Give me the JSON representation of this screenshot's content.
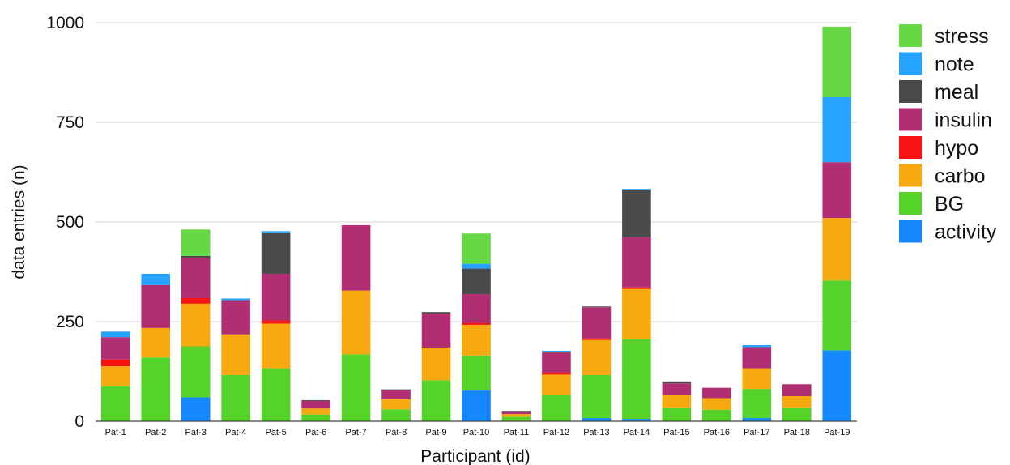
{
  "chart_data": {
    "type": "bar",
    "stacked": true,
    "title": "",
    "xlabel": "Participant (id)",
    "ylabel": "data entries (n)",
    "ylim": [
      0,
      1000
    ],
    "yticks": [
      0,
      250,
      500,
      750,
      1000
    ],
    "grid": true,
    "legend_position": "right",
    "categories": [
      "Pat-1",
      "Pat-2",
      "Pat-3",
      "Pat-4",
      "Pat-5",
      "Pat-6",
      "Pat-7",
      "Pat-8",
      "Pat-9",
      "Pat-10",
      "Pat-11",
      "Pat-12",
      "Pat-13",
      "Pat-14",
      "Pat-15",
      "Pat-16",
      "Pat-17",
      "Pat-18",
      "Pat-19"
    ],
    "series": [
      {
        "name": "activity",
        "color": "#1588ff",
        "values": [
          0,
          0,
          60,
          0,
          0,
          0,
          0,
          0,
          0,
          77,
          0,
          0,
          8,
          6,
          0,
          0,
          8,
          0,
          178
        ]
      },
      {
        "name": "BG",
        "color": "#55d32b",
        "values": [
          88,
          160,
          128,
          116,
          133,
          17,
          168,
          30,
          103,
          88,
          11,
          65,
          108,
          200,
          33,
          29,
          73,
          33,
          175
        ]
      },
      {
        "name": "carbo",
        "color": "#f6aa0f",
        "values": [
          50,
          74,
          107,
          102,
          112,
          15,
          160,
          25,
          82,
          77,
          7,
          52,
          88,
          126,
          32,
          29,
          52,
          30,
          157
        ]
      },
      {
        "name": "hypo",
        "color": "#f71313",
        "values": [
          17,
          0,
          14,
          0,
          8,
          0,
          0,
          0,
          0,
          4,
          0,
          5,
          4,
          4,
          0,
          0,
          0,
          0,
          0
        ]
      },
      {
        "name": "insulin",
        "color": "#b22e72",
        "values": [
          56,
          108,
          100,
          86,
          117,
          19,
          164,
          23,
          85,
          73,
          6,
          50,
          78,
          126,
          30,
          26,
          53,
          30,
          140
        ]
      },
      {
        "name": "meal",
        "color": "#4a4a4a",
        "values": [
          0,
          0,
          6,
          0,
          102,
          2,
          0,
          2,
          4,
          64,
          2,
          2,
          2,
          118,
          5,
          0,
          0,
          0,
          0
        ]
      },
      {
        "name": "note",
        "color": "#26a2ff",
        "values": [
          14,
          28,
          0,
          4,
          5,
          0,
          0,
          0,
          0,
          12,
          0,
          3,
          0,
          3,
          0,
          0,
          5,
          0,
          163
        ]
      },
      {
        "name": "stress",
        "color": "#65d843",
        "values": [
          0,
          0,
          66,
          0,
          0,
          0,
          0,
          0,
          0,
          76,
          0,
          0,
          0,
          0,
          0,
          0,
          0,
          0,
          177
        ]
      }
    ]
  }
}
